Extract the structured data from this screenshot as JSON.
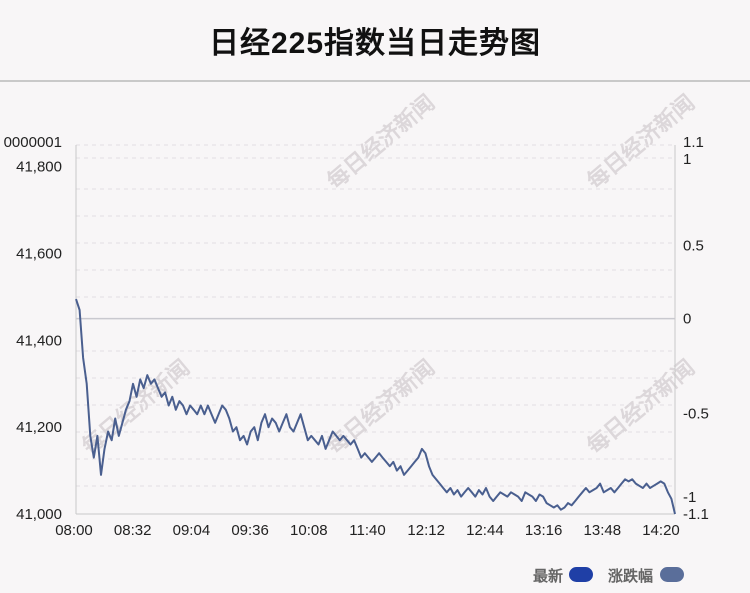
{
  "title": "日经225指数当日走势图",
  "watermark": "每日经济新闻",
  "legend": {
    "latest": {
      "label": "最新",
      "color": "#1f3fa6"
    },
    "change": {
      "label": "涨跌幅",
      "color": "#5a6e9a"
    }
  },
  "chart_data": {
    "type": "line",
    "x_ticks": [
      "08:00",
      "08:32",
      "09:04",
      "09:36",
      "10:08",
      "11:40",
      "12:12",
      "12:44",
      "13:16",
      "13:48",
      "14:20"
    ],
    "y_left_ticks": [
      "41,000",
      "41,200",
      "41,400",
      "41,600",
      "41,800",
      "0000001"
    ],
    "y_right_ticks": [
      "-1.1",
      "-1",
      "-0.5",
      "0",
      "0.5",
      "1",
      "1.1"
    ],
    "y_left_range": [
      41000,
      41850
    ],
    "y_right_range": [
      -1.1,
      1.1
    ],
    "baseline_value": 41450,
    "grid": "horizontal dashed",
    "line_color": "#4a5f8f",
    "series": [
      {
        "values": [
          41495,
          41470,
          41360,
          41300,
          41180,
          41130,
          41180,
          41090,
          41150,
          41190,
          41170,
          41220,
          41180,
          41210,
          41240,
          41260,
          41300,
          41270,
          41310,
          41290,
          41320,
          41300,
          41310,
          41290,
          41270,
          41280,
          41250,
          41270,
          41240,
          41260,
          41250,
          41230,
          41250,
          41240,
          41230,
          41250,
          41230,
          41250,
          41230,
          41210,
          41230,
          41250,
          41240,
          41220,
          41190,
          41200,
          41170,
          41180,
          41160,
          41190,
          41200,
          41170,
          41210,
          41230,
          41200,
          41220,
          41210,
          41190,
          41210,
          41230,
          41200,
          41190,
          41210,
          41230,
          41200,
          41170,
          41180,
          41170,
          41160,
          41180,
          41150,
          41170,
          41190,
          41180,
          41170,
          41180,
          41170,
          41160,
          41170,
          41150,
          41130,
          41140,
          41130,
          41120,
          41130,
          41140,
          41130,
          41120,
          41110,
          41120,
          41100,
          41110,
          41090,
          41100,
          41110,
          41120,
          41130,
          41150,
          41140,
          41110,
          41090,
          41080,
          41070,
          41060,
          41050,
          41060,
          41045,
          41055,
          41040,
          41050,
          41060,
          41050,
          41040,
          41055,
          41045,
          41060,
          41040,
          41030,
          41040,
          41050,
          41045,
          41040,
          41050,
          41045,
          41040,
          41030,
          41050,
          41045,
          41040,
          41030,
          41045,
          41040,
          41025,
          41020,
          41015,
          41020,
          41010,
          41015,
          41025,
          41020,
          41030,
          41040,
          41050,
          41060,
          41050,
          41055,
          41060,
          41070,
          41050,
          41055,
          41060,
          41050,
          41060,
          41070,
          41080,
          41075,
          41080,
          41070,
          41065,
          41060,
          41070,
          41060,
          41065,
          41070,
          41075,
          41070,
          41050,
          41035,
          41000
        ]
      }
    ]
  }
}
